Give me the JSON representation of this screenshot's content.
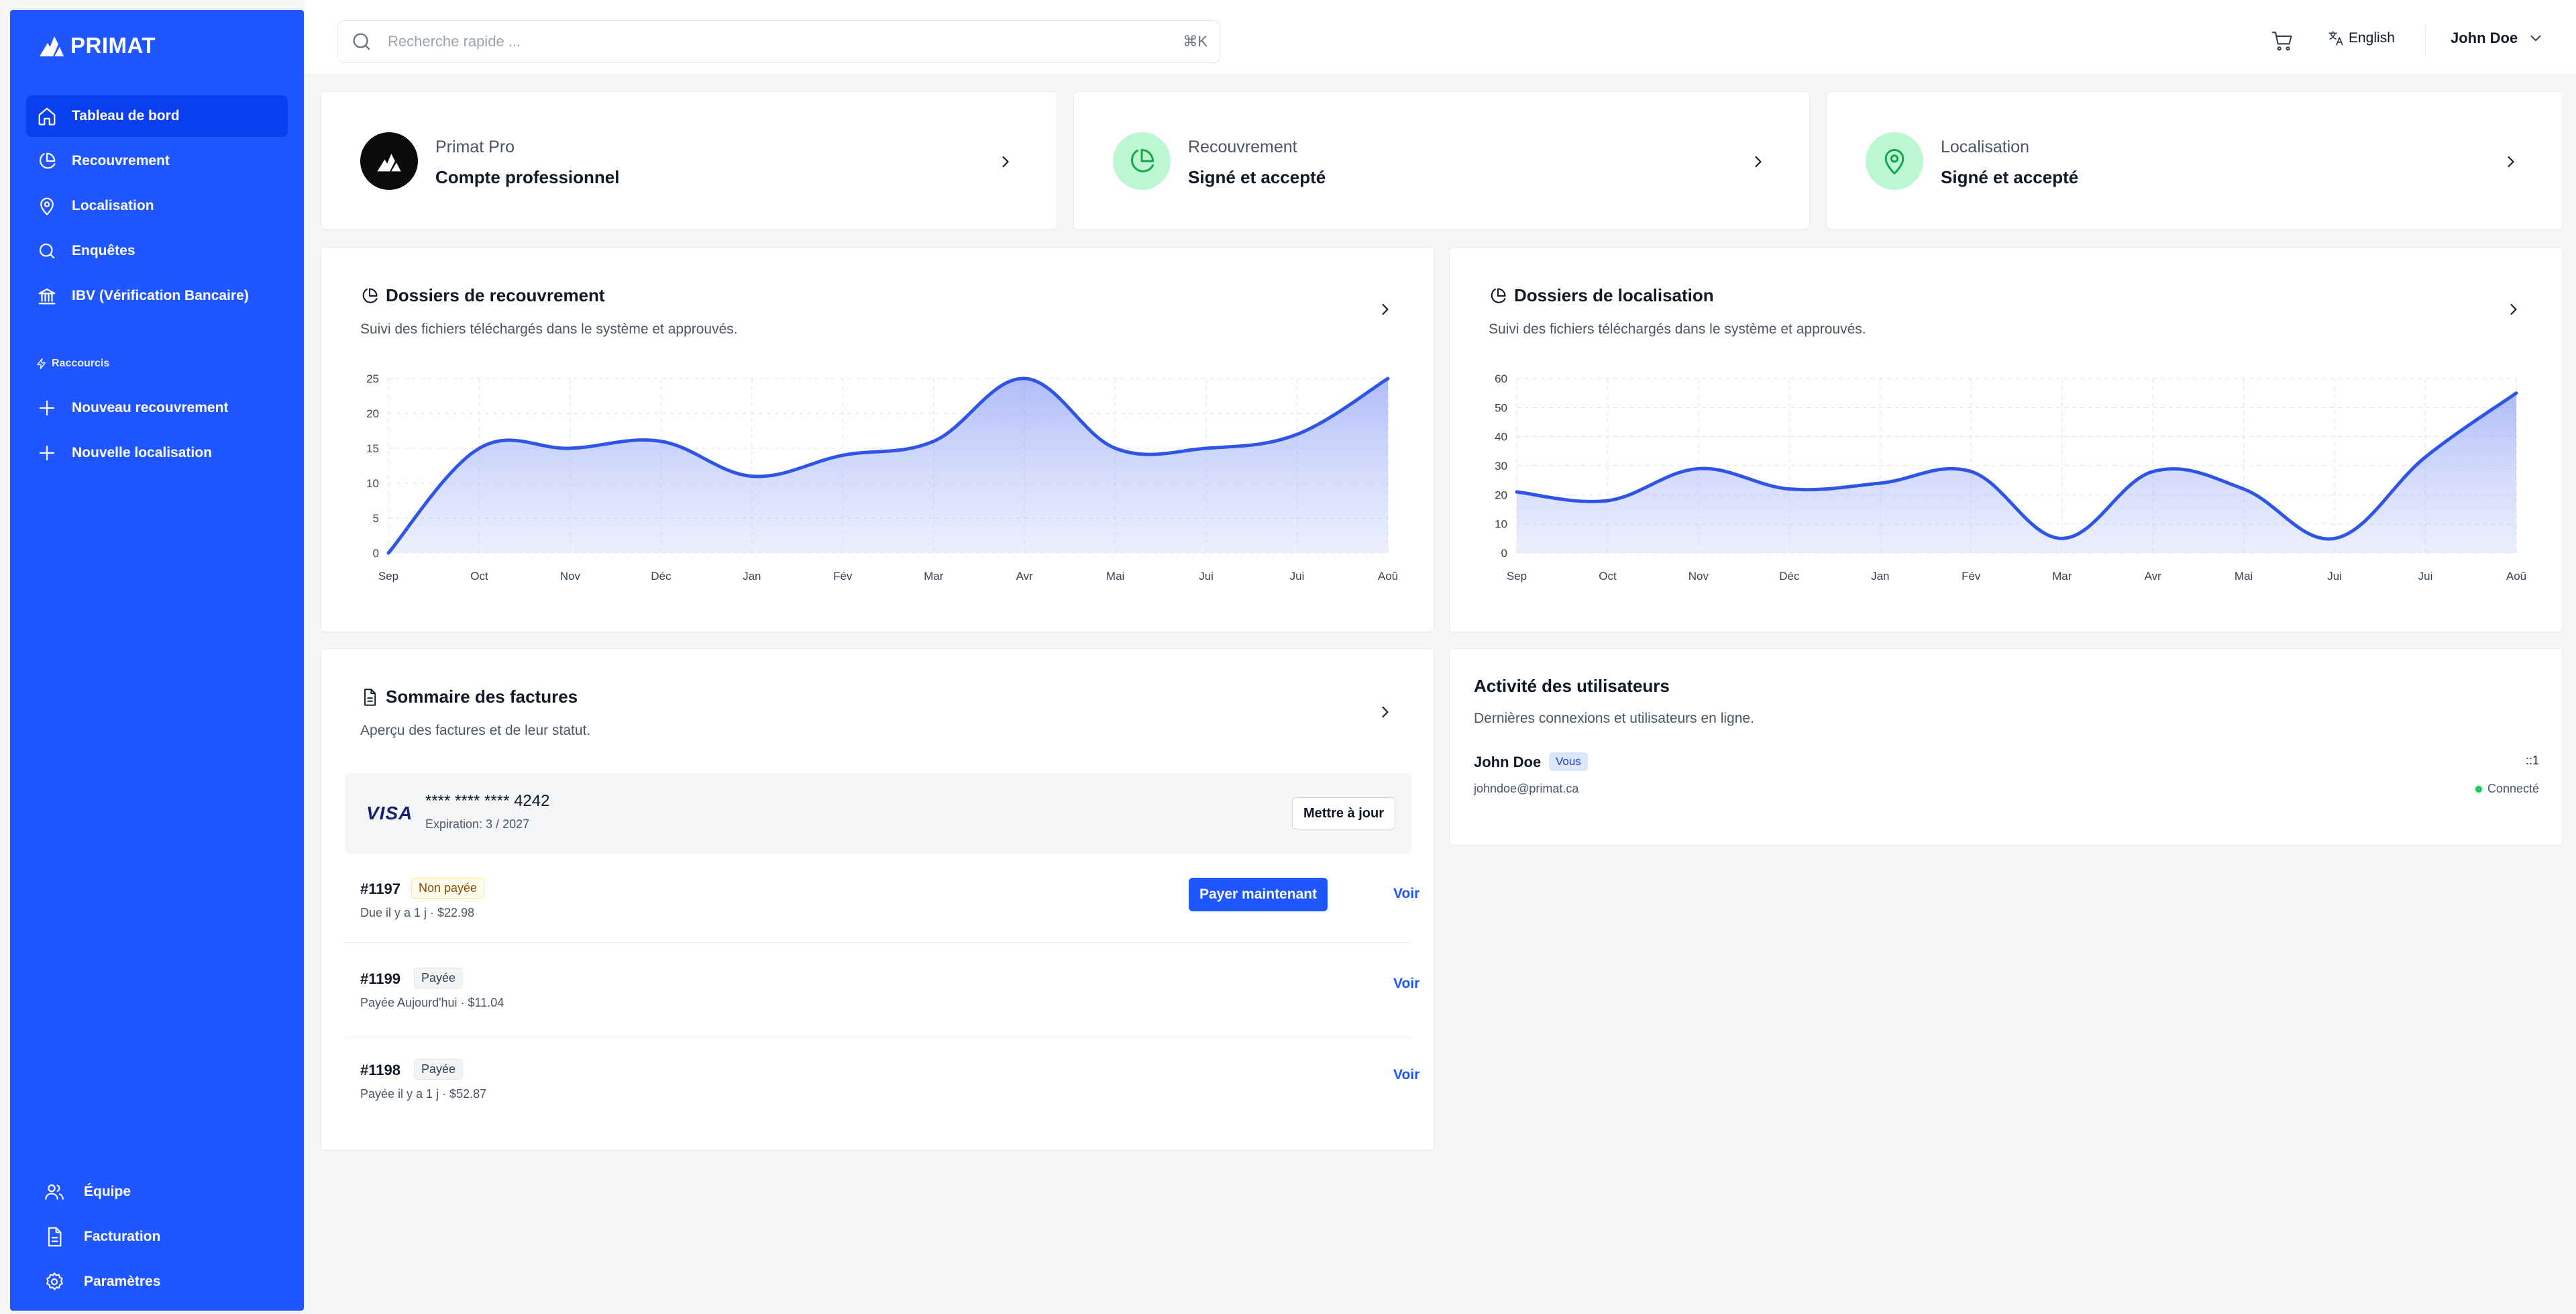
{
  "brand": {
    "name": "PRIMAT"
  },
  "sidebar": {
    "items": [
      {
        "label": "Tableau de bord",
        "icon": "home-icon",
        "active": true
      },
      {
        "label": "Recouvrement",
        "icon": "pie-chart-icon"
      },
      {
        "label": "Localisation",
        "icon": "map-pin-icon"
      },
      {
        "label": "Enquêtes",
        "icon": "search-icon"
      },
      {
        "label": "IBV (Vérification Bancaire)",
        "icon": "bank-icon"
      }
    ],
    "shortcuts_label": "Raccourcis",
    "shortcuts": [
      {
        "label": "Nouveau recouvrement",
        "icon": "plus-icon"
      },
      {
        "label": "Nouvelle localisation",
        "icon": "plus-icon"
      }
    ],
    "bottom": [
      {
        "label": "Équipe",
        "icon": "users-icon"
      },
      {
        "label": "Facturation",
        "icon": "file-icon"
      },
      {
        "label": "Paramètres",
        "icon": "gear-icon"
      }
    ]
  },
  "topbar": {
    "search_placeholder": "Recherche rapide ...",
    "search_shortcut": "⌘K",
    "language": "English",
    "user": "John Doe"
  },
  "stats": [
    {
      "label": "Primat Pro",
      "value": "Compte professionnel",
      "icon": "brand-logo-icon"
    },
    {
      "label": "Recouvrement",
      "value": "Signé et accepté",
      "icon": "pie-chart-icon"
    },
    {
      "label": "Localisation",
      "value": "Signé et accepté",
      "icon": "map-pin-icon"
    }
  ],
  "colors": {
    "accent": "#1f56ff",
    "line": "#2f55e4",
    "success": "#22c55e",
    "stat_green": "#bbf7d0"
  },
  "charts": {
    "recouvrement": {
      "title": "Dossiers de recouvrement",
      "subtitle": "Suivi des fichiers téléchargés dans le système et approuvés."
    },
    "localisation": {
      "title": "Dossiers de localisation",
      "subtitle": "Suivi des fichiers téléchargés dans le système et approuvés."
    }
  },
  "chart_data": [
    {
      "type": "area",
      "title": "Dossiers de recouvrement",
      "categories": [
        "Sep",
        "Oct",
        "Nov",
        "Déc",
        "Jan",
        "Fév",
        "Mar",
        "Avr",
        "Mai",
        "Jui",
        "Jui",
        "Aoû"
      ],
      "values": [
        0,
        15,
        15,
        16,
        11,
        14,
        16,
        25,
        15,
        15,
        17,
        25
      ],
      "yticks": [
        0,
        5,
        10,
        15,
        20,
        25
      ],
      "ylim": [
        0,
        25
      ],
      "grid": true
    },
    {
      "type": "area",
      "title": "Dossiers de localisation",
      "categories": [
        "Sep",
        "Oct",
        "Nov",
        "Déc",
        "Jan",
        "Fév",
        "Mar",
        "Avr",
        "Mai",
        "Jui",
        "Jui",
        "Aoû"
      ],
      "values": [
        21,
        18,
        29,
        22,
        24,
        28,
        5,
        28,
        22,
        5,
        33,
        55
      ],
      "yticks": [
        0,
        10,
        20,
        30,
        40,
        50,
        60
      ],
      "ylim": [
        0,
        60
      ],
      "grid": true
    }
  ],
  "invoices": {
    "title": "Sommaire des factures",
    "subtitle": "Aperçu des factures et de leur statut.",
    "card": {
      "brand": "VISA",
      "number": "**** **** **** 4242",
      "expiry": "Expiration: 3 / 2027",
      "update_label": "Mettre à jour"
    },
    "rows": [
      {
        "id": "#1197",
        "status": "Non payée",
        "meta": "Due il y a 1 j  ·  $22.98",
        "pay_label": "Payer maintenant",
        "view_label": "Voir"
      },
      {
        "id": "#1199",
        "status": "Payée",
        "meta": "Payée Aujourd'hui  ·  $11.04",
        "view_label": "Voir"
      },
      {
        "id": "#1198",
        "status": "Payée",
        "meta": "Payée il y a 1 j  ·  $52.87",
        "view_label": "Voir"
      }
    ]
  },
  "activity": {
    "title": "Activité des utilisateurs",
    "subtitle": "Dernières connexions et utilisateurs en ligne.",
    "user": {
      "name": "John Doe",
      "badge": "Vous",
      "email": "johndoe@primat.ca",
      "count": "::1",
      "status": "Connecté"
    }
  }
}
